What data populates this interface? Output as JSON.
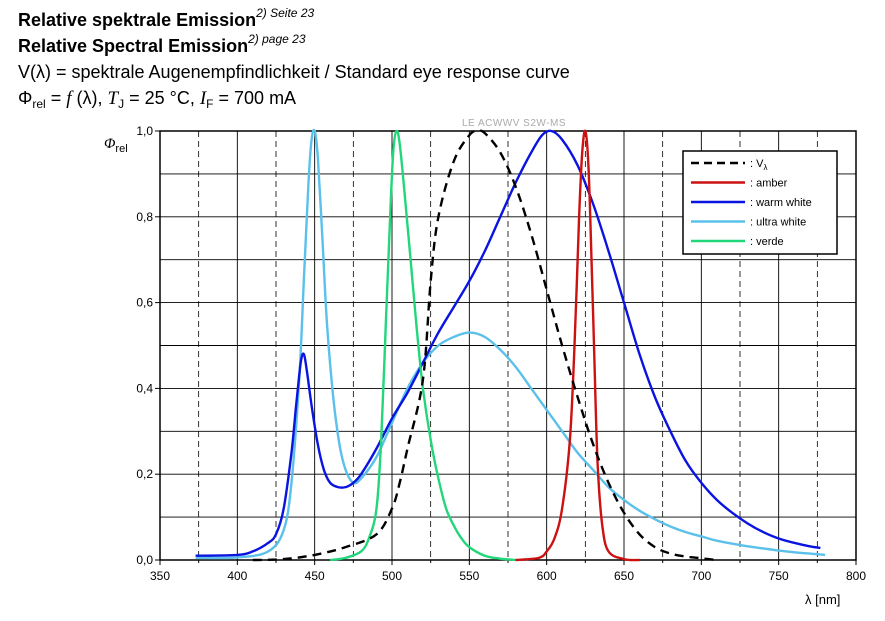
{
  "header": {
    "line1_main": "Relative spektrale Emission",
    "line1_sup": "2) Seite 23",
    "line2_main": "Relative Spectral Emission",
    "line2_sup": "2) page 23",
    "line3": "V(λ) = spektrale Augenempfindlichkeit / Standard eye response curve",
    "line4": {
      "phi": "Φ",
      "phi_sub": "rel",
      "eq": " = ",
      "f": "f",
      "lambda": " (λ), ",
      "t": "T",
      "t_sub": "J",
      "t_val": " = 25 °C, ",
      "i": "I",
      "i_sub": "F",
      "i_val": " = 700 mA"
    }
  },
  "chart_data": {
    "type": "line",
    "watermark": "LE ACWWV S2W-MS",
    "ylabel_main": "Φ",
    "ylabel_sub": "rel",
    "xlabel": "λ [nm]",
    "xlim": [
      350,
      800
    ],
    "ylim": [
      0,
      1.0
    ],
    "x_ticks": [
      "350",
      "400",
      "450",
      "500",
      "550",
      "600",
      "650",
      "700",
      "750",
      "800"
    ],
    "y_ticks": [
      "0,0",
      "0,2",
      "0,4",
      "0,6",
      "0,8",
      "1,0"
    ],
    "grid": true,
    "legend_position": "top-right",
    "colors": {
      "v_lambda": "#000000",
      "amber": "#cc1111",
      "warm_white": "#0a14e0",
      "ultra_white": "#5bc0ea",
      "verde": "#22d67a"
    },
    "series": [
      {
        "key": "v_lambda",
        "name": ": V",
        "name_sub": "λ",
        "dashed": true,
        "points": [
          [
            410,
            0.0
          ],
          [
            430,
            0.002
          ],
          [
            450,
            0.012
          ],
          [
            470,
            0.03
          ],
          [
            490,
            0.06
          ],
          [
            500,
            0.12
          ],
          [
            505,
            0.18
          ],
          [
            510,
            0.26
          ],
          [
            520,
            0.42
          ],
          [
            525,
            0.65
          ],
          [
            530,
            0.8
          ],
          [
            540,
            0.93
          ],
          [
            550,
            0.99
          ],
          [
            555,
            1.0
          ],
          [
            560,
            0.995
          ],
          [
            570,
            0.95
          ],
          [
            580,
            0.87
          ],
          [
            590,
            0.76
          ],
          [
            600,
            0.63
          ],
          [
            610,
            0.5
          ],
          [
            620,
            0.38
          ],
          [
            630,
            0.27
          ],
          [
            640,
            0.18
          ],
          [
            650,
            0.11
          ],
          [
            660,
            0.06
          ],
          [
            670,
            0.03
          ],
          [
            680,
            0.015
          ],
          [
            690,
            0.008
          ],
          [
            700,
            0.004
          ],
          [
            710,
            0.0
          ]
        ]
      },
      {
        "key": "amber",
        "name": ": amber",
        "dashed": false,
        "points": [
          [
            580,
            0.0
          ],
          [
            595,
            0.005
          ],
          [
            600,
            0.02
          ],
          [
            605,
            0.05
          ],
          [
            610,
            0.12
          ],
          [
            615,
            0.28
          ],
          [
            618,
            0.5
          ],
          [
            621,
            0.8
          ],
          [
            623,
            0.95
          ],
          [
            625,
            1.0
          ],
          [
            627,
            0.92
          ],
          [
            629,
            0.7
          ],
          [
            631,
            0.45
          ],
          [
            633,
            0.22
          ],
          [
            636,
            0.08
          ],
          [
            640,
            0.02
          ],
          [
            650,
            0.002
          ],
          [
            660,
            0.0
          ]
        ]
      },
      {
        "key": "warm_white",
        "name": ": warm white",
        "dashed": false,
        "points": [
          [
            373,
            0.01
          ],
          [
            400,
            0.012
          ],
          [
            410,
            0.02
          ],
          [
            420,
            0.04
          ],
          [
            425,
            0.06
          ],
          [
            430,
            0.12
          ],
          [
            435,
            0.25
          ],
          [
            438,
            0.36
          ],
          [
            441,
            0.46
          ],
          [
            443,
            0.48
          ],
          [
            445,
            0.44
          ],
          [
            448,
            0.36
          ],
          [
            452,
            0.27
          ],
          [
            456,
            0.21
          ],
          [
            460,
            0.18
          ],
          [
            465,
            0.17
          ],
          [
            470,
            0.17
          ],
          [
            475,
            0.18
          ],
          [
            480,
            0.2
          ],
          [
            490,
            0.26
          ],
          [
            500,
            0.33
          ],
          [
            510,
            0.39
          ],
          [
            520,
            0.46
          ],
          [
            530,
            0.53
          ],
          [
            540,
            0.59
          ],
          [
            550,
            0.65
          ],
          [
            560,
            0.72
          ],
          [
            570,
            0.8
          ],
          [
            580,
            0.88
          ],
          [
            590,
            0.95
          ],
          [
            597,
            0.99
          ],
          [
            603,
            1.0
          ],
          [
            610,
            0.98
          ],
          [
            620,
            0.92
          ],
          [
            630,
            0.83
          ],
          [
            640,
            0.72
          ],
          [
            650,
            0.6
          ],
          [
            660,
            0.48
          ],
          [
            670,
            0.38
          ],
          [
            680,
            0.3
          ],
          [
            690,
            0.23
          ],
          [
            700,
            0.18
          ],
          [
            710,
            0.14
          ],
          [
            720,
            0.11
          ],
          [
            730,
            0.085
          ],
          [
            740,
            0.065
          ],
          [
            750,
            0.05
          ],
          [
            760,
            0.04
          ],
          [
            770,
            0.032
          ],
          [
            777,
            0.028
          ]
        ]
      },
      {
        "key": "ultra_white",
        "name": ": ultra white",
        "dashed": false,
        "points": [
          [
            373,
            0.005
          ],
          [
            400,
            0.006
          ],
          [
            420,
            0.02
          ],
          [
            430,
            0.07
          ],
          [
            435,
            0.18
          ],
          [
            440,
            0.42
          ],
          [
            443,
            0.65
          ],
          [
            446,
            0.88
          ],
          [
            448,
            0.98
          ],
          [
            450,
            1.0
          ],
          [
            452,
            0.94
          ],
          [
            455,
            0.75
          ],
          [
            458,
            0.55
          ],
          [
            462,
            0.38
          ],
          [
            466,
            0.27
          ],
          [
            470,
            0.21
          ],
          [
            475,
            0.18
          ],
          [
            480,
            0.19
          ],
          [
            490,
            0.24
          ],
          [
            500,
            0.32
          ],
          [
            510,
            0.4
          ],
          [
            520,
            0.46
          ],
          [
            530,
            0.5
          ],
          [
            540,
            0.52
          ],
          [
            550,
            0.53
          ],
          [
            560,
            0.52
          ],
          [
            570,
            0.49
          ],
          [
            580,
            0.45
          ],
          [
            590,
            0.4
          ],
          [
            600,
            0.35
          ],
          [
            610,
            0.3
          ],
          [
            620,
            0.25
          ],
          [
            630,
            0.21
          ],
          [
            640,
            0.17
          ],
          [
            650,
            0.14
          ],
          [
            660,
            0.115
          ],
          [
            670,
            0.095
          ],
          [
            680,
            0.078
          ],
          [
            690,
            0.065
          ],
          [
            700,
            0.055
          ],
          [
            710,
            0.045
          ],
          [
            720,
            0.038
          ],
          [
            730,
            0.032
          ],
          [
            740,
            0.027
          ],
          [
            750,
            0.022
          ],
          [
            760,
            0.018
          ],
          [
            770,
            0.015
          ],
          [
            780,
            0.012
          ]
        ]
      },
      {
        "key": "verde",
        "name": ": verde",
        "dashed": false,
        "points": [
          [
            460,
            0.0
          ],
          [
            470,
            0.005
          ],
          [
            480,
            0.02
          ],
          [
            485,
            0.05
          ],
          [
            490,
            0.12
          ],
          [
            493,
            0.28
          ],
          [
            496,
            0.55
          ],
          [
            499,
            0.82
          ],
          [
            501,
            0.96
          ],
          [
            503,
            1.0
          ],
          [
            505,
            0.97
          ],
          [
            508,
            0.86
          ],
          [
            512,
            0.7
          ],
          [
            516,
            0.54
          ],
          [
            520,
            0.4
          ],
          [
            525,
            0.28
          ],
          [
            530,
            0.19
          ],
          [
            535,
            0.12
          ],
          [
            540,
            0.08
          ],
          [
            545,
            0.05
          ],
          [
            550,
            0.03
          ],
          [
            560,
            0.01
          ],
          [
            570,
            0.003
          ],
          [
            580,
            0.0
          ]
        ]
      }
    ]
  }
}
